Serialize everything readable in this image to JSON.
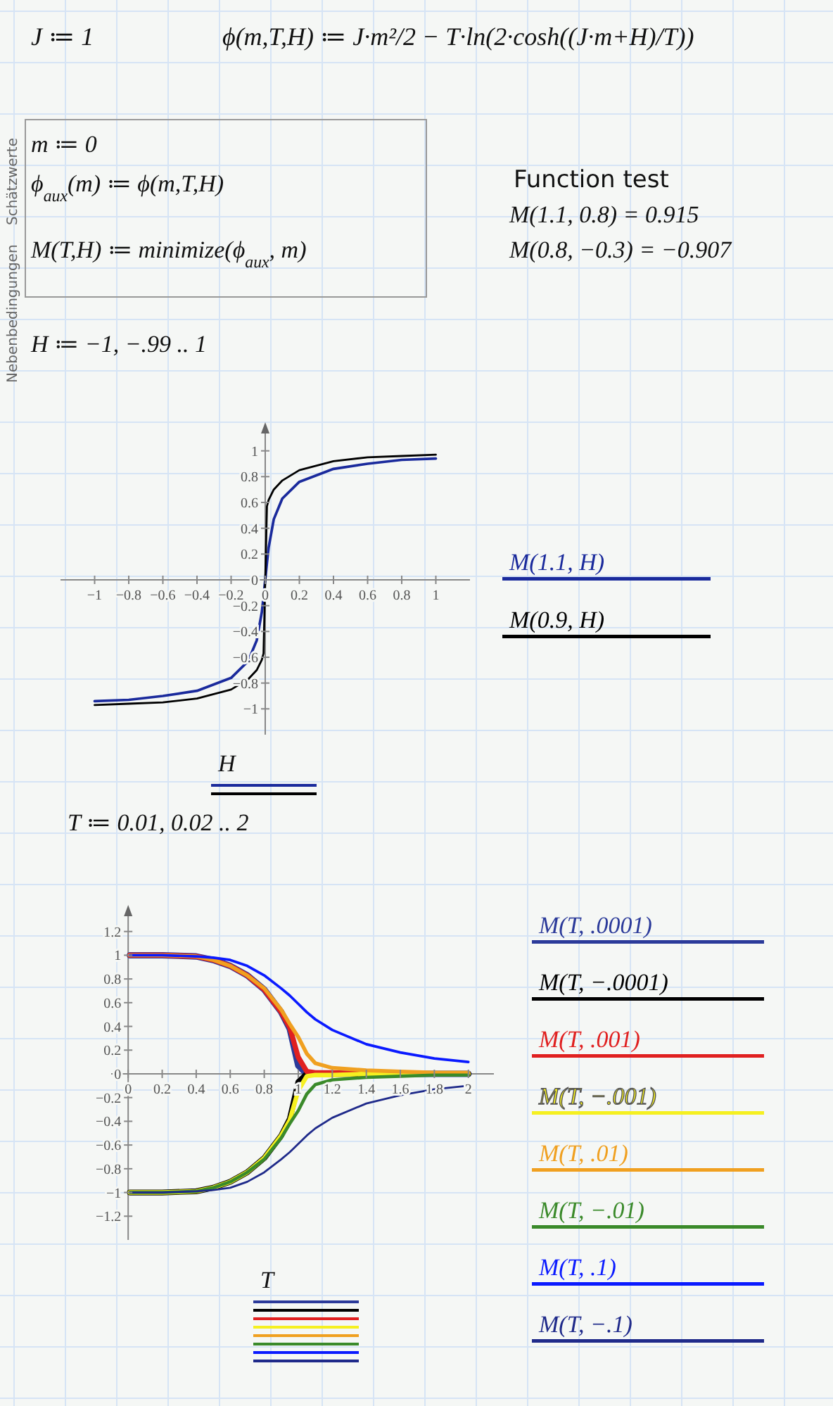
{
  "chart_data": [
    {
      "type": "line",
      "xlabel": "H",
      "legend": "right",
      "annotations": [
        "J ≔ 1",
        "ϕ(m,T,H) ≔ J·m²/2 − T·ln(2·cosh((J·m+H)/T))",
        "Schätzwerte",
        "Nebenbedingungen",
        "m ≔ 0",
        "ϕ$_{aux}$(m) ≔ ϕ(m,T,H)",
        "M(T,H) ≔ minimize(ϕ$_{aux}$, m)",
        "Function test",
        "M(1.1, 0.8) = 0.915",
        "M(0.8, −0.3) = −0.907",
        "H ≔ −1, −.99 .. 1"
      ],
      "xlim": [
        -1.2,
        1.2
      ],
      "ylim": [
        -1.2,
        1.2
      ],
      "xticks": [
        {
          "value": -1,
          "label": "−1"
        },
        {
          "value": -0.8,
          "label": "−0.8"
        },
        {
          "value": -0.6,
          "label": "−0.6"
        },
        {
          "value": -0.4,
          "label": "−0.4"
        },
        {
          "value": -0.2,
          "label": "−0.2"
        },
        0,
        0.2,
        0.4,
        0.6,
        0.8,
        1
      ],
      "yticks": [
        {
          "value": -1,
          "label": "−1"
        },
        {
          "value": -0.8,
          "label": "−0.8"
        },
        {
          "value": -0.6,
          "label": "−0.6"
        },
        {
          "value": -0.4,
          "label": "−0.4"
        },
        {
          "value": -0.2,
          "label": "−0.2"
        },
        0,
        0.2,
        0.4,
        0.6,
        0.8,
        1
      ],
      "x": [
        -1,
        -0.8,
        -0.6,
        -0.4,
        -0.2,
        -0.1,
        -0.05,
        -0.02,
        -0.01,
        0,
        0.01,
        0.02,
        0.05,
        0.1,
        0.2,
        0.4,
        0.6,
        0.8,
        1
      ],
      "series": [
        {
          "name": "M(1.1, H)",
          "color": "#1a2a9c",
          "values": [
            -0.94,
            -0.93,
            -0.9,
            -0.86,
            -0.76,
            -0.63,
            -0.47,
            -0.25,
            -0.13,
            0,
            0.13,
            0.25,
            0.47,
            0.63,
            0.76,
            0.86,
            0.9,
            0.93,
            0.94
          ]
        },
        {
          "name": "M(0.9, H)",
          "color": "#000000",
          "values": [
            -0.97,
            -0.96,
            -0.95,
            -0.92,
            -0.85,
            -0.77,
            -0.7,
            -0.62,
            -0.57,
            0,
            0.57,
            0.62,
            0.7,
            0.77,
            0.85,
            0.92,
            0.95,
            0.96,
            0.97
          ]
        }
      ]
    },
    {
      "type": "line",
      "xlabel": "T",
      "legend": "right",
      "annotations": [
        "T ≔ 0.01, 0.02 .. 2"
      ],
      "xlim": [
        -0.1,
        2.15
      ],
      "ylim": [
        -1.4,
        1.4
      ],
      "xticks": [
        0,
        0.2,
        0.4,
        0.6,
        0.8,
        1,
        1.2,
        1.4,
        1.6,
        1.8,
        2
      ],
      "yticks": [
        {
          "value": -1.2,
          "label": "−1.2"
        },
        {
          "value": -1,
          "label": "−1"
        },
        {
          "value": -0.8,
          "label": "−0.8"
        },
        {
          "value": -0.6,
          "label": "−0.6"
        },
        {
          "value": -0.4,
          "label": "−0.4"
        },
        {
          "value": -0.2,
          "label": "−0.2"
        },
        0,
        0.2,
        0.4,
        0.6,
        0.8,
        1,
        1.2
      ],
      "x": [
        0.01,
        0.2,
        0.4,
        0.5,
        0.6,
        0.7,
        0.8,
        0.9,
        0.95,
        1,
        1.05,
        1.1,
        1.2,
        1.4,
        1.6,
        1.8,
        2
      ],
      "series": [
        {
          "name": "M(T, .0001)",
          "color": "#2b3a9a",
          "values": [
            1,
            1,
            0.99,
            0.96,
            0.91,
            0.83,
            0.71,
            0.52,
            0.38,
            0.07,
            0,
            0,
            0,
            0,
            0,
            0,
            0
          ]
        },
        {
          "name": "M(T, −.0001)",
          "color": "#000000",
          "values": [
            -1,
            -1,
            -0.99,
            -0.96,
            -0.91,
            -0.83,
            -0.71,
            -0.52,
            -0.38,
            -0.07,
            0,
            0,
            0,
            0,
            0,
            0,
            0
          ]
        },
        {
          "name": "M(T, .001)",
          "color": "#e02020",
          "values": [
            1,
            1,
            0.99,
            0.96,
            0.91,
            0.83,
            0.71,
            0.52,
            0.39,
            0.14,
            0.02,
            0.01,
            0.01,
            0,
            0,
            null,
            null
          ]
        },
        {
          "name": "M(T, −.001)",
          "color": "#f5f020",
          "values": [
            -1,
            -1,
            -0.99,
            -0.96,
            -0.91,
            -0.83,
            -0.71,
            -0.52,
            -0.39,
            -0.14,
            -0.02,
            -0.01,
            -0.01,
            0,
            0,
            0,
            0
          ]
        },
        {
          "name": "M(T, .01)",
          "color": "#f0a020",
          "values": [
            1,
            1,
            0.99,
            0.96,
            0.91,
            0.83,
            0.72,
            0.54,
            0.42,
            0.31,
            0.17,
            0.09,
            0.05,
            0.03,
            0.02,
            0.01,
            0.01
          ]
        },
        {
          "name": "M(T, −.01)",
          "color": "#3a8a2a",
          "values": [
            -1,
            -1,
            -0.99,
            -0.96,
            -0.91,
            -0.83,
            -0.72,
            -0.54,
            -0.42,
            -0.31,
            -0.17,
            -0.09,
            -0.05,
            -0.03,
            -0.02,
            -0.01,
            -0.01
          ]
        },
        {
          "name": "M(T, .1)",
          "color": "#0a1aff",
          "values": [
            1,
            1,
            0.99,
            0.98,
            0.96,
            0.91,
            0.83,
            0.72,
            0.66,
            0.59,
            0.52,
            0.46,
            0.37,
            0.25,
            0.18,
            0.13,
            0.1
          ]
        },
        {
          "name": "M(T, −.1)",
          "color": "#1f2a8a",
          "values": [
            -1,
            -1,
            -0.99,
            -0.98,
            -0.96,
            -0.91,
            -0.83,
            -0.72,
            -0.66,
            -0.59,
            -0.52,
            -0.46,
            -0.37,
            -0.25,
            -0.18,
            -0.13,
            -0.1
          ]
        }
      ]
    }
  ]
}
